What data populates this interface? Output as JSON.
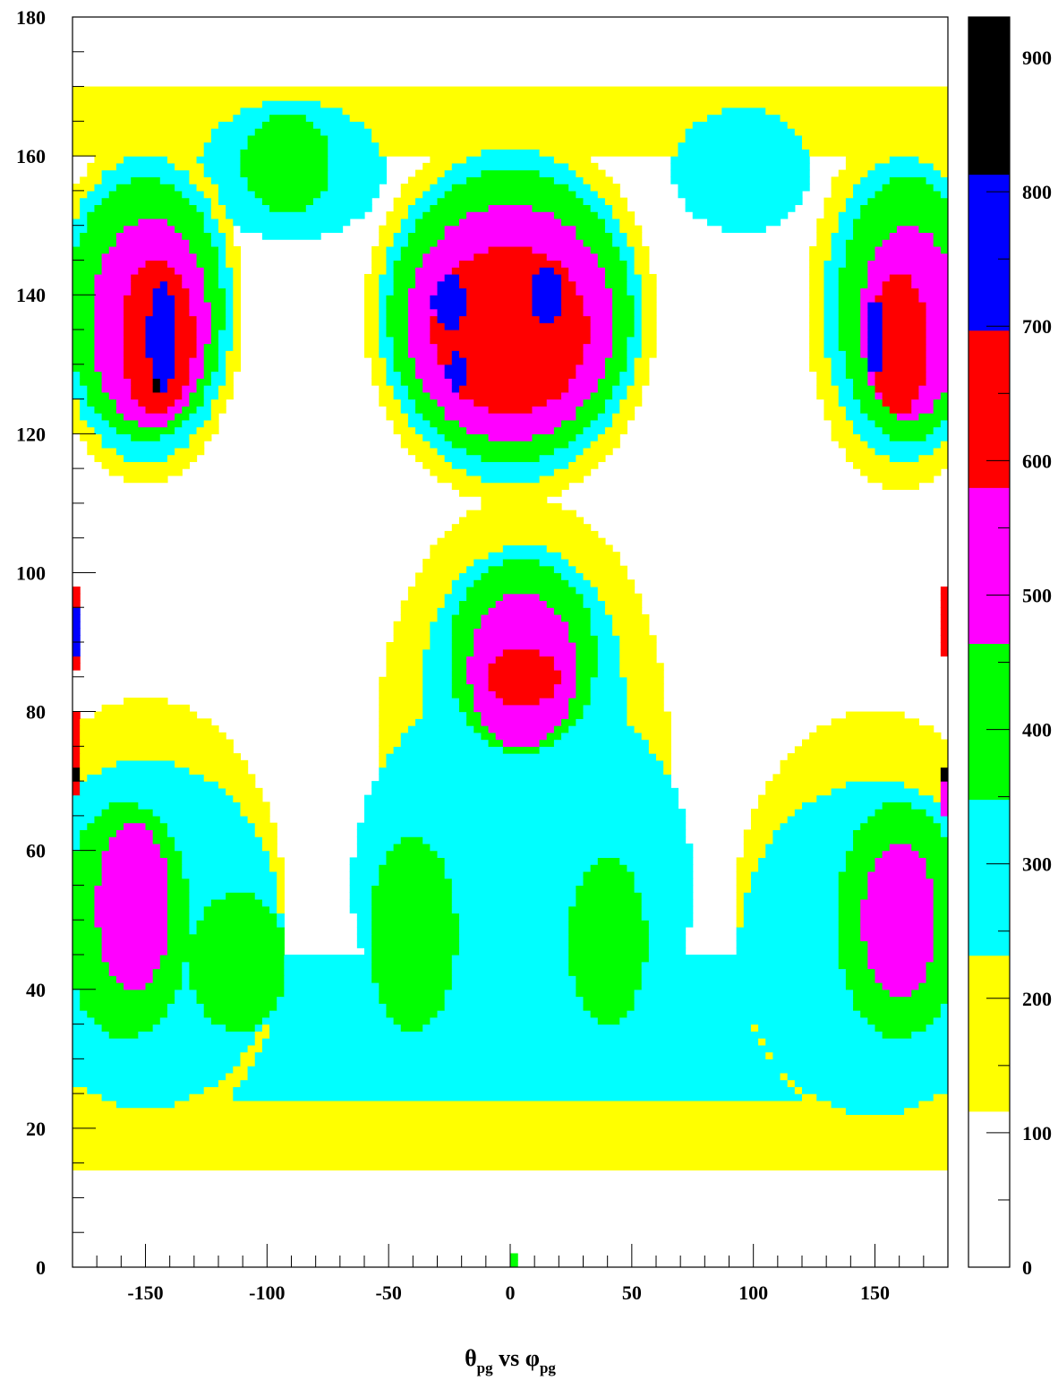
{
  "chart_data": {
    "type": "heatmap",
    "title": "",
    "xlabel": {
      "theta_symbol": "θ",
      "theta_sub": "pg",
      "middle": " vs ",
      "phi_symbol": "φ",
      "phi_sub": "pg"
    },
    "ylabel": "",
    "xlim": [
      -180,
      180
    ],
    "ylim": [
      0,
      180
    ],
    "zlim": [
      0,
      930
    ],
    "x_tick_labels": [
      {
        "value": -150,
        "label": "-150"
      },
      {
        "value": -100,
        "label": "-100"
      },
      {
        "value": -50,
        "label": "-50"
      },
      {
        "value": 0,
        "label": "0"
      },
      {
        "value": 50,
        "label": "50"
      },
      {
        "value": 100,
        "label": "100"
      },
      {
        "value": 150,
        "label": "150"
      }
    ],
    "y_tick_labels": [
      {
        "value": 0,
        "label": "0"
      },
      {
        "value": 20,
        "label": "20"
      },
      {
        "value": 40,
        "label": "40"
      },
      {
        "value": 60,
        "label": "60"
      },
      {
        "value": 80,
        "label": "80"
      },
      {
        "value": 100,
        "label": "100"
      },
      {
        "value": 120,
        "label": "120"
      },
      {
        "value": 140,
        "label": "140"
      },
      {
        "value": 160,
        "label": "160"
      },
      {
        "value": 180,
        "label": "180"
      }
    ],
    "colorbar": {
      "tick_labels": [
        {
          "value": 0,
          "label": "0"
        },
        {
          "value": 100,
          "label": "100"
        },
        {
          "value": 200,
          "label": "200"
        },
        {
          "value": 300,
          "label": "300"
        },
        {
          "value": 400,
          "label": "400"
        },
        {
          "value": 500,
          "label": "500"
        },
        {
          "value": 600,
          "label": "600"
        },
        {
          "value": 700,
          "label": "700"
        },
        {
          "value": 800,
          "label": "800"
        },
        {
          "value": 900,
          "label": "900"
        }
      ],
      "levels": [
        {
          "from": 0,
          "to": 116,
          "color": "#ffffff"
        },
        {
          "from": 116,
          "to": 232,
          "color": "#ffff00"
        },
        {
          "from": 232,
          "to": 348,
          "color": "#00ffff"
        },
        {
          "from": 348,
          "to": 464,
          "color": "#00ff00"
        },
        {
          "from": 464,
          "to": 580,
          "color": "#ff00ff"
        },
        {
          "from": 580,
          "to": 697,
          "color": "#ff0000"
        },
        {
          "from": 697,
          "to": 813,
          "color": "#0000ff"
        },
        {
          "from": 813,
          "to": 930,
          "color": "#000000"
        }
      ]
    },
    "grid": false,
    "legend": "colorbar-right",
    "regions": [
      {
        "color": "#ffff00",
        "shape": "rect",
        "x": [
          -180,
          180
        ],
        "y": [
          14,
          24
        ]
      },
      {
        "color": "#00ffff",
        "shape": "rect",
        "x": [
          -180,
          180
        ],
        "y": [
          24,
          35
        ]
      },
      {
        "color": "#ffff00",
        "shape": "rect",
        "x": [
          -180,
          180
        ],
        "y": [
          160,
          170
        ]
      },
      {
        "color": "#00ffff",
        "shape": "ellipse",
        "cx": -90,
        "cy": 158,
        "rx": 38,
        "ry": 10
      },
      {
        "color": "#00ffff",
        "shape": "ellipse",
        "cx": 95,
        "cy": 158,
        "rx": 28,
        "ry": 9
      },
      {
        "color": "#00ff00",
        "shape": "ellipse",
        "cx": -92,
        "cy": 159,
        "rx": 18,
        "ry": 7
      },
      {
        "color": "#ffff00",
        "shape": "ellipse",
        "cx": -150,
        "cy": 138,
        "rx": 40,
        "ry": 25
      },
      {
        "color": "#00ffff",
        "shape": "ellipse",
        "cx": -150,
        "cy": 138,
        "rx": 36,
        "ry": 22
      },
      {
        "color": "#00ff00",
        "shape": "ellipse",
        "cx": -150,
        "cy": 138,
        "rx": 32,
        "ry": 19
      },
      {
        "color": "#ff00ff",
        "shape": "ellipse",
        "cx": -148,
        "cy": 136,
        "rx": 24,
        "ry": 15
      },
      {
        "color": "#ff0000",
        "shape": "ellipse",
        "cx": -145,
        "cy": 134,
        "rx": 15,
        "ry": 11
      },
      {
        "color": "#0000ff",
        "shape": "ellipse",
        "cx": -143,
        "cy": 134,
        "rx": 6,
        "ry": 8
      },
      {
        "color": "#000000",
        "shape": "rect",
        "x": [
          -148,
          -145
        ],
        "y": [
          126,
          128
        ]
      },
      {
        "color": "#ffff00",
        "shape": "ellipse",
        "cx": 0,
        "cy": 137,
        "rx": 60,
        "ry": 27
      },
      {
        "color": "#00ffff",
        "shape": "ellipse",
        "cx": 0,
        "cy": 137,
        "rx": 54,
        "ry": 24
      },
      {
        "color": "#00ff00",
        "shape": "ellipse",
        "cx": 0,
        "cy": 137,
        "rx": 50,
        "ry": 21
      },
      {
        "color": "#ff00ff",
        "shape": "ellipse",
        "cx": 0,
        "cy": 136,
        "rx": 42,
        "ry": 17
      },
      {
        "color": "#ff0000",
        "shape": "ellipse",
        "cx": 0,
        "cy": 135,
        "rx": 32,
        "ry": 12
      },
      {
        "color": "#0000ff",
        "shape": "ellipse",
        "cx": -25,
        "cy": 139,
        "rx": 7,
        "ry": 4
      },
      {
        "color": "#0000ff",
        "shape": "ellipse",
        "cx": 15,
        "cy": 140,
        "rx": 6,
        "ry": 4
      },
      {
        "color": "#0000ff",
        "shape": "ellipse",
        "cx": -22,
        "cy": 129,
        "rx": 4,
        "ry": 3
      },
      {
        "color": "#ffff00",
        "shape": "ellipse",
        "cx": 160,
        "cy": 138,
        "rx": 38,
        "ry": 26
      },
      {
        "color": "#00ffff",
        "shape": "ellipse",
        "cx": 162,
        "cy": 138,
        "rx": 33,
        "ry": 22
      },
      {
        "color": "#00ff00",
        "shape": "ellipse",
        "cx": 164,
        "cy": 138,
        "rx": 29,
        "ry": 19
      },
      {
        "color": "#ff00ff",
        "shape": "ellipse",
        "cx": 164,
        "cy": 136,
        "rx": 20,
        "ry": 14
      },
      {
        "color": "#ff0000",
        "shape": "ellipse",
        "cx": 160,
        "cy": 133,
        "rx": 12,
        "ry": 10
      },
      {
        "color": "#0000ff",
        "shape": "ellipse",
        "cx": 150,
        "cy": 134,
        "rx": 4,
        "ry": 5
      },
      {
        "color": "#ffff00",
        "shape": "ellipse",
        "cx": -150,
        "cy": 50,
        "rx": 58,
        "ry": 32
      },
      {
        "color": "#ffff00",
        "shape": "ellipse",
        "cx": 150,
        "cy": 50,
        "rx": 58,
        "ry": 30
      },
      {
        "color": "#00ffff",
        "shape": "ellipse",
        "cx": -150,
        "cy": 48,
        "rx": 56,
        "ry": 25
      },
      {
        "color": "#00ffff",
        "shape": "ellipse",
        "cx": 150,
        "cy": 46,
        "rx": 56,
        "ry": 24
      },
      {
        "color": "#ffff00",
        "shape": "ellipse",
        "cx": 5,
        "cy": 75,
        "rx": 60,
        "ry": 36
      },
      {
        "color": "#00ffff",
        "shape": "ellipse",
        "cx": 5,
        "cy": 55,
        "rx": 70,
        "ry": 30
      },
      {
        "color": "#00ffff",
        "shape": "ellipse",
        "cx": 5,
        "cy": 82,
        "rx": 42,
        "ry": 22
      },
      {
        "color": "#00ffff",
        "shape": "rect",
        "x": [
          -120,
          120
        ],
        "y": [
          35,
          45
        ]
      },
      {
        "color": "#00ff00",
        "shape": "ellipse",
        "cx": 5,
        "cy": 88,
        "rx": 30,
        "ry": 14
      },
      {
        "color": "#ff00ff",
        "shape": "ellipse",
        "cx": 5,
        "cy": 86,
        "rx": 22,
        "ry": 11
      },
      {
        "color": "#ff0000",
        "shape": "ellipse",
        "cx": 5,
        "cy": 85,
        "rx": 15,
        "ry": 4
      },
      {
        "color": "#00ff00",
        "shape": "ellipse",
        "cx": -158,
        "cy": 50,
        "rx": 26,
        "ry": 17
      },
      {
        "color": "#ff00ff",
        "shape": "ellipse",
        "cx": -155,
        "cy": 52,
        "rx": 15,
        "ry": 12
      },
      {
        "color": "#00ff00",
        "shape": "ellipse",
        "cx": -112,
        "cy": 44,
        "rx": 20,
        "ry": 10
      },
      {
        "color": "#00ff00",
        "shape": "ellipse",
        "cx": -40,
        "cy": 48,
        "rx": 18,
        "ry": 14
      },
      {
        "color": "#00ff00",
        "shape": "ellipse",
        "cx": 40,
        "cy": 47,
        "rx": 16,
        "ry": 12
      },
      {
        "color": "#00ff00",
        "shape": "ellipse",
        "cx": 160,
        "cy": 50,
        "rx": 26,
        "ry": 17
      },
      {
        "color": "#ff00ff",
        "shape": "ellipse",
        "cx": 160,
        "cy": 50,
        "rx": 15,
        "ry": 11
      },
      {
        "color": "#ff0000",
        "shape": "rect",
        "x": [
          -180,
          -177
        ],
        "y": [
          86,
          98
        ]
      },
      {
        "color": "#0000ff",
        "shape": "rect",
        "x": [
          -180,
          -177
        ],
        "y": [
          88,
          95
        ]
      },
      {
        "color": "#ff0000",
        "shape": "rect",
        "x": [
          -180,
          -177
        ],
        "y": [
          68,
          80
        ]
      },
      {
        "color": "#000000",
        "shape": "rect",
        "x": [
          -180,
          -177
        ],
        "y": [
          70,
          72
        ]
      },
      {
        "color": "#ff0000",
        "shape": "rect",
        "x": [
          177,
          180
        ],
        "y": [
          88,
          98
        ]
      },
      {
        "color": "#ff00ff",
        "shape": "rect",
        "x": [
          177,
          180
        ],
        "y": [
          65,
          72
        ]
      },
      {
        "color": "#000000",
        "shape": "rect",
        "x": [
          177,
          180
        ],
        "y": [
          70,
          72
        ]
      },
      {
        "color": "#00ff00",
        "shape": "rect",
        "x": [
          0,
          2
        ],
        "y": [
          0,
          2
        ]
      }
    ]
  }
}
